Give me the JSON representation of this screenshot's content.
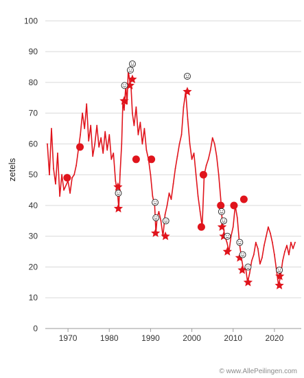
{
  "credit": "© www.AllePeilingen.com",
  "chart_data": {
    "type": "line",
    "title": "",
    "xlabel": "",
    "ylabel": "zetels",
    "xlim": [
      1964.5,
      2025.5
    ],
    "ylim": [
      0,
      105
    ],
    "yticks": [
      0,
      10,
      20,
      30,
      40,
      50,
      60,
      70,
      80,
      90,
      100
    ],
    "xticks": [
      1970,
      1980,
      1990,
      2000,
      2010,
      2020
    ],
    "grid": true,
    "legend": "none",
    "line_color": "#e0141c",
    "series": [
      {
        "values": [
          [
            1965,
            60
          ],
          [
            1965.5,
            50
          ],
          [
            1966,
            65
          ],
          [
            1966.5,
            52
          ],
          [
            1967,
            47
          ],
          [
            1967.5,
            57
          ],
          [
            1968,
            43
          ],
          [
            1968.5,
            50
          ],
          [
            1969,
            45
          ],
          [
            1970,
            48
          ],
          [
            1970.5,
            44
          ],
          [
            1971,
            49
          ],
          [
            1971.5,
            50
          ],
          [
            1972,
            53
          ],
          [
            1972.5,
            58
          ],
          [
            1973,
            63
          ],
          [
            1973.5,
            70
          ],
          [
            1974,
            65
          ],
          [
            1974.5,
            73
          ],
          [
            1975,
            61
          ],
          [
            1975.5,
            66
          ],
          [
            1976,
            56
          ],
          [
            1976.5,
            60
          ],
          [
            1977,
            66
          ],
          [
            1977.5,
            59
          ],
          [
            1978,
            62
          ],
          [
            1978.5,
            57
          ],
          [
            1979,
            64
          ],
          [
            1979.5,
            58
          ],
          [
            1980,
            63
          ],
          [
            1980.5,
            55
          ],
          [
            1981,
            57
          ],
          [
            1981.5,
            48
          ],
          [
            1982,
            44
          ],
          [
            1982.3,
            39
          ],
          [
            1982.6,
            50
          ],
          [
            1983,
            60
          ],
          [
            1983.3,
            74
          ],
          [
            1983.6,
            71
          ],
          [
            1984,
            79
          ],
          [
            1984.3,
            73
          ],
          [
            1984.6,
            84
          ],
          [
            1985,
            80
          ],
          [
            1985.3,
            78
          ],
          [
            1985.6,
            70
          ],
          [
            1986,
            66
          ],
          [
            1986.5,
            72
          ],
          [
            1987,
            63
          ],
          [
            1987.5,
            67
          ],
          [
            1988,
            60
          ],
          [
            1988.5,
            65
          ],
          [
            1989,
            58
          ],
          [
            1989.5,
            55
          ],
          [
            1990,
            50
          ],
          [
            1990.5,
            43
          ],
          [
            1991,
            40
          ],
          [
            1991.3,
            31
          ],
          [
            1991.6,
            36
          ],
          [
            1992,
            38
          ],
          [
            1992.5,
            35
          ],
          [
            1993,
            30
          ],
          [
            1993.5,
            37
          ],
          [
            1994,
            40
          ],
          [
            1994.5,
            44
          ],
          [
            1995,
            42
          ],
          [
            1995.5,
            47
          ],
          [
            1996,
            52
          ],
          [
            1996.5,
            56
          ],
          [
            1997,
            60
          ],
          [
            1997.5,
            63
          ],
          [
            1998,
            72
          ],
          [
            1998.5,
            77
          ],
          [
            1999,
            68
          ],
          [
            1999.5,
            60
          ],
          [
            2000,
            55
          ],
          [
            2000.5,
            57
          ],
          [
            2001,
            50
          ],
          [
            2001.5,
            43
          ],
          [
            2002,
            38
          ],
          [
            2002.5,
            33
          ],
          [
            2003,
            50
          ],
          [
            2003.5,
            53
          ],
          [
            2004,
            55
          ],
          [
            2004.5,
            58
          ],
          [
            2005,
            62
          ],
          [
            2005.5,
            60
          ],
          [
            2006,
            56
          ],
          [
            2006.5,
            50
          ],
          [
            2007,
            42
          ],
          [
            2007.3,
            36
          ],
          [
            2007.6,
            33
          ],
          [
            2008,
            30
          ],
          [
            2008.5,
            28
          ],
          [
            2009,
            25
          ],
          [
            2009.5,
            30
          ],
          [
            2010,
            33
          ],
          [
            2010.5,
            40
          ],
          [
            2011,
            36
          ],
          [
            2011.5,
            28
          ],
          [
            2012,
            23
          ],
          [
            2012.5,
            19
          ],
          [
            2013,
            20
          ],
          [
            2013.5,
            15
          ],
          [
            2014,
            18
          ],
          [
            2014.5,
            22
          ],
          [
            2015,
            24
          ],
          [
            2015.5,
            28
          ],
          [
            2016,
            26
          ],
          [
            2016.5,
            21
          ],
          [
            2017,
            23
          ],
          [
            2017.5,
            27
          ],
          [
            2018,
            30
          ],
          [
            2018.5,
            33
          ],
          [
            2019,
            31
          ],
          [
            2019.5,
            28
          ],
          [
            2020,
            24
          ],
          [
            2020.5,
            19
          ],
          [
            2021,
            14
          ],
          [
            2021.5,
            17
          ],
          [
            2022,
            22
          ],
          [
            2022.5,
            25
          ],
          [
            2023,
            27
          ],
          [
            2023.5,
            24
          ],
          [
            2024,
            28
          ],
          [
            2024.5,
            26
          ],
          [
            2025,
            28
          ]
        ]
      }
    ],
    "markers": [
      {
        "x": 1969.8,
        "y": 49,
        "shape": "dot"
      },
      {
        "x": 1972.9,
        "y": 59,
        "shape": "dot"
      },
      {
        "x": 1986.5,
        "y": 55,
        "shape": "dot"
      },
      {
        "x": 1990.2,
        "y": 55,
        "shape": "dot"
      },
      {
        "x": 2002.3,
        "y": 33,
        "shape": "dot"
      },
      {
        "x": 2002.8,
        "y": 50,
        "shape": "dot"
      },
      {
        "x": 2007.0,
        "y": 40,
        "shape": "dot"
      },
      {
        "x": 2010.2,
        "y": 40,
        "shape": "dot"
      },
      {
        "x": 2012.6,
        "y": 42,
        "shape": "dot"
      },
      {
        "x": 1982.1,
        "y": 46,
        "shape": "star"
      },
      {
        "x": 1982.2,
        "y": 39,
        "shape": "star"
      },
      {
        "x": 1983.6,
        "y": 74,
        "shape": "star"
      },
      {
        "x": 1985.0,
        "y": 79,
        "shape": "star"
      },
      {
        "x": 1985.6,
        "y": 81,
        "shape": "star"
      },
      {
        "x": 1991.2,
        "y": 31,
        "shape": "star"
      },
      {
        "x": 1993.6,
        "y": 30,
        "shape": "star"
      },
      {
        "x": 1998.9,
        "y": 77,
        "shape": "star"
      },
      {
        "x": 2007.3,
        "y": 33,
        "shape": "star"
      },
      {
        "x": 2007.7,
        "y": 30,
        "shape": "star"
      },
      {
        "x": 2008.6,
        "y": 25,
        "shape": "star"
      },
      {
        "x": 2011.6,
        "y": 23,
        "shape": "star"
      },
      {
        "x": 2012.2,
        "y": 19,
        "shape": "star"
      },
      {
        "x": 2013.6,
        "y": 15,
        "shape": "star"
      },
      {
        "x": 2021.2,
        "y": 14,
        "shape": "star"
      },
      {
        "x": 2021.3,
        "y": 17,
        "shape": "star"
      },
      {
        "x": 1983.7,
        "y": 79,
        "shape": "smiley"
      },
      {
        "x": 1985.1,
        "y": 84,
        "shape": "smiley"
      },
      {
        "x": 1985.6,
        "y": 86,
        "shape": "smiley"
      },
      {
        "x": 1982.2,
        "y": 44,
        "shape": "smiley"
      },
      {
        "x": 1991.1,
        "y": 41,
        "shape": "smiley"
      },
      {
        "x": 1991.3,
        "y": 36,
        "shape": "smiley"
      },
      {
        "x": 1993.7,
        "y": 35,
        "shape": "smiley"
      },
      {
        "x": 1998.9,
        "y": 82,
        "shape": "smiley"
      },
      {
        "x": 2007.2,
        "y": 38,
        "shape": "smiley"
      },
      {
        "x": 2007.7,
        "y": 35,
        "shape": "smiley"
      },
      {
        "x": 2008.6,
        "y": 30,
        "shape": "smiley"
      },
      {
        "x": 2011.6,
        "y": 28,
        "shape": "smiley"
      },
      {
        "x": 2012.3,
        "y": 24,
        "shape": "smiley"
      },
      {
        "x": 2013.6,
        "y": 20,
        "shape": "smiley"
      },
      {
        "x": 2021.2,
        "y": 19,
        "shape": "smiley"
      }
    ]
  }
}
